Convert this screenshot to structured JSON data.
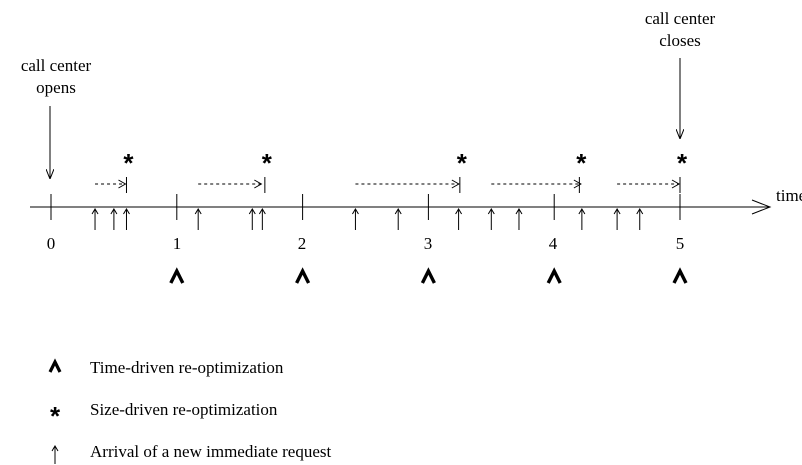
{
  "annotations": {
    "opens": [
      "call center",
      "opens"
    ],
    "closes": [
      "call center",
      "closes"
    ],
    "axis_label": "time"
  },
  "ticks": [
    "0",
    "1",
    "2",
    "3",
    "4",
    "5"
  ],
  "symbols": {
    "time_marker": "^",
    "size_marker": "*"
  },
  "legend": [
    {
      "symbol": "^",
      "text": "Time-driven re-optimization",
      "icon": "caret-icon"
    },
    {
      "symbol": "*",
      "text": "Size-driven re-optimization",
      "icon": "asterisk-icon"
    },
    {
      "symbol": "↑",
      "text": "Arrival of a new immediate request",
      "icon": "up-arrow-icon"
    }
  ],
  "timeline": {
    "open_time": 0,
    "close_time": 5,
    "time_driven_reoptimizations": [
      1,
      2,
      3,
      4,
      5
    ],
    "size_driven_reoptimizations": [
      0.6,
      1.7,
      3.25,
      4.2,
      5
    ],
    "arrivals": [
      0.35,
      0.5,
      0.6,
      1.17,
      1.6,
      1.68,
      2.42,
      2.76,
      3.24,
      3.5,
      3.72,
      4.22,
      4.5,
      4.68
    ],
    "waiting_intervals": [
      [
        0.35,
        0.6
      ],
      [
        1.17,
        1.68
      ],
      [
        2.42,
        3.25
      ],
      [
        3.5,
        4.22
      ],
      [
        4.5,
        5
      ]
    ]
  }
}
